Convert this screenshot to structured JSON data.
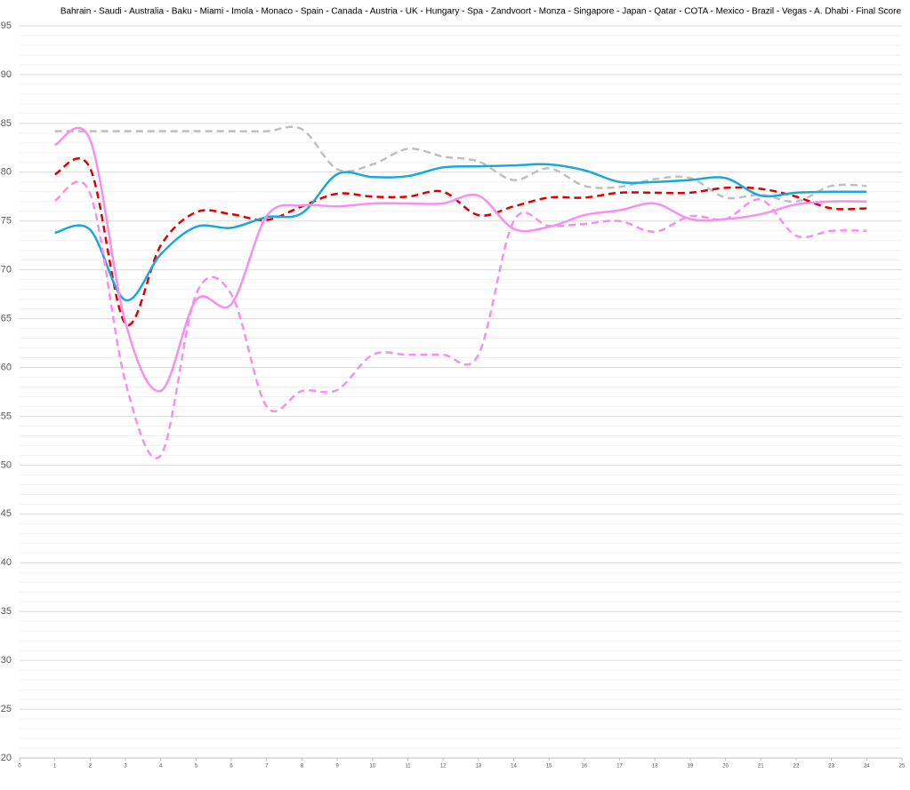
{
  "chart_data": {
    "type": "line",
    "title": "Bahrain - Saudi - Australia -   Baku   -  Miami  - Imola - Monaco -  Spain  - Canada -  Austria  -  UK  - Hungary -  Spa  - Zandvoort - Monza - Singapore - Japan -  Qatar  - COTA - Mexico -    Brazil    - Vegas - A. Dhabi - Final Score",
    "x": [
      1,
      2,
      3,
      4,
      5,
      6,
      7,
      8,
      9,
      10,
      11,
      12,
      13,
      14,
      15,
      16,
      17,
      18,
      19,
      20,
      21,
      22,
      23,
      24
    ],
    "series": [
      {
        "color": "#bfbfbf",
        "dashed": true,
        "values": [
          84.2,
          84.2,
          84.2,
          84.2,
          84.2,
          84.2,
          84.2,
          84.4,
          80.3,
          80.8,
          82.4,
          81.6,
          81.1,
          79.2,
          80.4,
          78.6,
          78.5,
          79.3,
          79.4,
          77.4,
          77.7,
          77.0,
          78.6,
          78.6
        ]
      },
      {
        "color": "#e00000",
        "dashed": true,
        "values": [
          79.8,
          80.4,
          64.5,
          72.5,
          75.9,
          75.7,
          75.1,
          76.5,
          77.8,
          77.5,
          77.5,
          78.0,
          75.6,
          76.5,
          77.4,
          77.4,
          77.9,
          77.9,
          77.9,
          78.4,
          78.3,
          77.5,
          76.3,
          76.3
        ]
      },
      {
        "color": "#1aa7dc",
        "dashed": false,
        "values": [
          73.8,
          74.1,
          66.9,
          71.6,
          74.4,
          74.3,
          75.4,
          75.8,
          79.8,
          79.5,
          79.6,
          80.5,
          80.6,
          80.7,
          80.8,
          80.2,
          79.0,
          79.0,
          79.2,
          79.4,
          77.6,
          77.9,
          78.0,
          78.0
        ]
      },
      {
        "color": "#f78ef0",
        "dashed": false,
        "values": [
          82.8,
          83.3,
          64.6,
          57.6,
          66.9,
          66.5,
          75.5,
          76.6,
          76.5,
          76.8,
          76.8,
          76.8,
          77.6,
          74.2,
          74.4,
          75.6,
          76.1,
          76.8,
          75.2,
          75.2,
          75.7,
          76.7,
          77.0,
          77.0
        ]
      },
      {
        "color": "#f78ef0",
        "dashed": true,
        "values": [
          77.1,
          77.8,
          58.5,
          51.0,
          67.5,
          67.5,
          56.0,
          57.6,
          57.7,
          61.3,
          61.3,
          61.3,
          61.3,
          75.0,
          74.5,
          74.7,
          75.0,
          73.9,
          75.5,
          75.2,
          77.2,
          73.5,
          74.0,
          74.0
        ]
      }
    ],
    "xlim": [
      0,
      25
    ],
    "xticks": [
      0,
      1,
      2,
      3,
      4,
      5,
      6,
      7,
      8,
      9,
      10,
      11,
      12,
      13,
      14,
      15,
      16,
      17,
      18,
      19,
      20,
      21,
      22,
      23,
      24,
      25
    ],
    "ylim": [
      20,
      95
    ],
    "yticks": [
      20,
      25,
      30,
      35,
      40,
      45,
      50,
      55,
      60,
      65,
      70,
      75,
      80,
      85,
      90,
      95
    ],
    "grid": true
  }
}
